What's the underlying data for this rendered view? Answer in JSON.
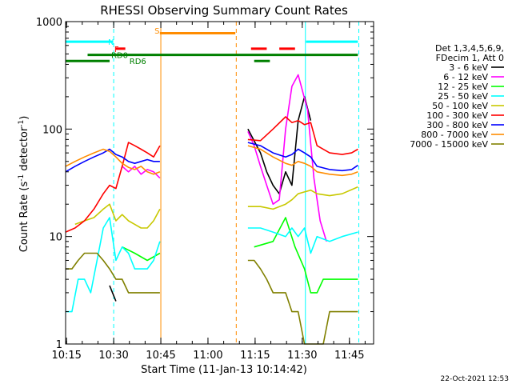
{
  "chart_data": {
    "type": "line",
    "title": "RHESSI Observing Summary Count Rates",
    "xlabel": "Start Time (11-Jan-13 10:14:42)",
    "ylabel_parts": [
      "Count Rate (s",
      "-1",
      " detector",
      "-1",
      ")"
    ],
    "yscale": "log",
    "ylim": [
      1,
      1000
    ],
    "xlim_min": [
      0,
      98
    ],
    "x_unit": "minutes after 10:14:42",
    "yticks": [
      {
        "v": 1,
        "label": "1"
      },
      {
        "v": 10,
        "label": "10"
      },
      {
        "v": 100,
        "label": "100"
      },
      {
        "v": 1000,
        "label": "1000"
      }
    ],
    "xticks": [
      {
        "m": 0.3,
        "label": "10:15"
      },
      {
        "m": 15.3,
        "label": "10:30"
      },
      {
        "m": 30.3,
        "label": "10:45"
      },
      {
        "m": 45.3,
        "label": "11:00"
      },
      {
        "m": 60.3,
        "label": "11:15"
      },
      {
        "m": 75.3,
        "label": "11:30"
      },
      {
        "m": 90.3,
        "label": "11:45"
      }
    ],
    "legend": {
      "header": [
        "Det 1,3,4,5,6,9,",
        "FDecim 1, Att 0"
      ],
      "placement": "right"
    },
    "series": [
      {
        "name": "3 - 6 keV",
        "color": "#000000",
        "points": [
          [
            0,
            null
          ],
          [
            14,
            3.5
          ],
          [
            16,
            2.5
          ],
          [
            18,
            null
          ],
          [
            58,
            100
          ],
          [
            62,
            60
          ],
          [
            64,
            40
          ],
          [
            66,
            30
          ],
          [
            68,
            25
          ],
          [
            70,
            40
          ],
          [
            72,
            30
          ],
          [
            74,
            120
          ],
          [
            76,
            200
          ],
          [
            78,
            120
          ],
          [
            80,
            null
          ]
        ]
      },
      {
        "name": "6 - 12 keV",
        "color": "#ff00ff",
        "points": [
          [
            0,
            null
          ],
          [
            18,
            45
          ],
          [
            20,
            40
          ],
          [
            22,
            45
          ],
          [
            24,
            38
          ],
          [
            26,
            42
          ],
          [
            28,
            40
          ],
          [
            30,
            35
          ],
          [
            31,
            null
          ],
          [
            58,
            95
          ],
          [
            60,
            70
          ],
          [
            62,
            45
          ],
          [
            64,
            30
          ],
          [
            66,
            20
          ],
          [
            68,
            22
          ],
          [
            70,
            100
          ],
          [
            72,
            250
          ],
          [
            74,
            320
          ],
          [
            75,
            250
          ],
          [
            77,
            150
          ],
          [
            79,
            35
          ],
          [
            81,
            14
          ],
          [
            83,
            9
          ],
          [
            84,
            null
          ]
        ]
      },
      {
        "name": "12 - 25 keV",
        "color": "#00ff00",
        "points": [
          [
            0,
            null
          ],
          [
            18,
            8
          ],
          [
            22,
            7
          ],
          [
            26,
            6
          ],
          [
            30,
            7
          ],
          [
            31,
            null
          ],
          [
            60,
            8
          ],
          [
            66,
            9
          ],
          [
            70,
            15
          ],
          [
            73,
            8
          ],
          [
            76,
            5
          ],
          [
            78,
            3
          ],
          [
            80,
            3
          ],
          [
            82,
            4
          ],
          [
            86,
            4
          ],
          [
            90,
            4
          ],
          [
            93,
            4
          ]
        ]
      },
      {
        "name": "25 - 50 keV",
        "color": "#00ffff",
        "points": [
          [
            0,
            2
          ],
          [
            2,
            2
          ],
          [
            4,
            4
          ],
          [
            6,
            4
          ],
          [
            8,
            3
          ],
          [
            10,
            6
          ],
          [
            12,
            12
          ],
          [
            14,
            15
          ],
          [
            16,
            6
          ],
          [
            18,
            8
          ],
          [
            20,
            7
          ],
          [
            22,
            5
          ],
          [
            24,
            5
          ],
          [
            26,
            5
          ],
          [
            28,
            6
          ],
          [
            30,
            9
          ],
          [
            31,
            null
          ],
          [
            58,
            12
          ],
          [
            62,
            12
          ],
          [
            66,
            11
          ],
          [
            70,
            10
          ],
          [
            72,
            12
          ],
          [
            74,
            10
          ],
          [
            76,
            12
          ],
          [
            78,
            7
          ],
          [
            80,
            10
          ],
          [
            84,
            9
          ],
          [
            88,
            10
          ],
          [
            93,
            11
          ]
        ]
      },
      {
        "name": "50 - 100 keV",
        "color": "#c8c800",
        "points": [
          [
            0,
            null
          ],
          [
            3,
            13
          ],
          [
            6,
            14
          ],
          [
            9,
            15
          ],
          [
            12,
            18
          ],
          [
            14,
            20
          ],
          [
            16,
            14
          ],
          [
            18,
            16
          ],
          [
            20,
            14
          ],
          [
            22,
            13
          ],
          [
            24,
            12
          ],
          [
            26,
            12
          ],
          [
            28,
            14
          ],
          [
            30,
            18
          ],
          [
            31,
            null
          ],
          [
            58,
            19
          ],
          [
            62,
            19
          ],
          [
            66,
            18
          ],
          [
            70,
            20
          ],
          [
            72,
            22
          ],
          [
            74,
            25
          ],
          [
            76,
            26
          ],
          [
            78,
            27
          ],
          [
            80,
            25
          ],
          [
            84,
            24
          ],
          [
            88,
            25
          ],
          [
            93,
            29
          ]
        ]
      },
      {
        "name": "100 - 300 keV",
        "color": "#ff0000",
        "points": [
          [
            0,
            11
          ],
          [
            3,
            12
          ],
          [
            6,
            14
          ],
          [
            9,
            18
          ],
          [
            12,
            25
          ],
          [
            14,
            30
          ],
          [
            16,
            28
          ],
          [
            18,
            45
          ],
          [
            20,
            75
          ],
          [
            22,
            70
          ],
          [
            24,
            65
          ],
          [
            26,
            60
          ],
          [
            28,
            55
          ],
          [
            30,
            70
          ],
          [
            31,
            null
          ],
          [
            58,
            80
          ],
          [
            62,
            78
          ],
          [
            66,
            100
          ],
          [
            70,
            130
          ],
          [
            72,
            115
          ],
          [
            74,
            120
          ],
          [
            76,
            110
          ],
          [
            78,
            115
          ],
          [
            80,
            70
          ],
          [
            84,
            60
          ],
          [
            88,
            58
          ],
          [
            91,
            60
          ],
          [
            93,
            65
          ]
        ]
      },
      {
        "name": "300 - 800 keV",
        "color": "#0000ff",
        "points": [
          [
            0,
            40
          ],
          [
            3,
            45
          ],
          [
            6,
            50
          ],
          [
            9,
            55
          ],
          [
            12,
            60
          ],
          [
            14,
            65
          ],
          [
            16,
            58
          ],
          [
            18,
            55
          ],
          [
            20,
            50
          ],
          [
            22,
            48
          ],
          [
            24,
            50
          ],
          [
            26,
            52
          ],
          [
            28,
            50
          ],
          [
            30,
            50
          ],
          [
            31,
            null
          ],
          [
            58,
            75
          ],
          [
            62,
            70
          ],
          [
            66,
            60
          ],
          [
            70,
            55
          ],
          [
            72,
            58
          ],
          [
            74,
            65
          ],
          [
            76,
            60
          ],
          [
            78,
            55
          ],
          [
            80,
            45
          ],
          [
            84,
            42
          ],
          [
            88,
            41
          ],
          [
            91,
            42
          ],
          [
            93,
            46
          ]
        ]
      },
      {
        "name": "800 - 7000 keV",
        "color": "#ff8c00",
        "points": [
          [
            0,
            45
          ],
          [
            3,
            50
          ],
          [
            6,
            55
          ],
          [
            9,
            60
          ],
          [
            12,
            65
          ],
          [
            14,
            62
          ],
          [
            16,
            55
          ],
          [
            18,
            48
          ],
          [
            20,
            44
          ],
          [
            22,
            42
          ],
          [
            24,
            45
          ],
          [
            26,
            40
          ],
          [
            28,
            38
          ],
          [
            30,
            40
          ],
          [
            31,
            null
          ],
          [
            58,
            70
          ],
          [
            62,
            65
          ],
          [
            66,
            55
          ],
          [
            70,
            48
          ],
          [
            72,
            46
          ],
          [
            74,
            50
          ],
          [
            76,
            48
          ],
          [
            78,
            45
          ],
          [
            80,
            40
          ],
          [
            84,
            38
          ],
          [
            88,
            37
          ],
          [
            91,
            38
          ],
          [
            93,
            40
          ]
        ]
      },
      {
        "name": "7000 - 15000 keV",
        "color": "#808000",
        "points": [
          [
            0,
            5
          ],
          [
            2,
            5
          ],
          [
            4,
            6
          ],
          [
            6,
            7
          ],
          [
            8,
            7
          ],
          [
            10,
            7
          ],
          [
            12,
            6
          ],
          [
            14,
            5
          ],
          [
            16,
            4
          ],
          [
            18,
            4
          ],
          [
            20,
            3
          ],
          [
            22,
            3
          ],
          [
            24,
            3
          ],
          [
            26,
            3
          ],
          [
            28,
            3
          ],
          [
            30,
            3
          ],
          [
            31,
            null
          ],
          [
            58,
            6
          ],
          [
            60,
            6
          ],
          [
            62,
            5
          ],
          [
            64,
            4
          ],
          [
            66,
            3
          ],
          [
            68,
            3
          ],
          [
            70,
            3
          ],
          [
            72,
            2
          ],
          [
            74,
            2
          ],
          [
            76,
            1
          ],
          [
            78,
            1
          ],
          [
            80,
            1
          ],
          [
            82,
            1
          ],
          [
            84,
            2
          ],
          [
            86,
            2
          ],
          [
            88,
            2
          ],
          [
            90,
            2
          ],
          [
            93,
            2
          ]
        ]
      }
    ],
    "markers": [
      {
        "label": "N",
        "color": "#00ffff",
        "y": 650,
        "segments": [
          [
            0,
            15
          ],
          [
            76.5,
            93
          ]
        ],
        "label_at": 13.5,
        "label_y": 650
      },
      {
        "label": "F",
        "color": "#ff0000",
        "y": 560,
        "segments": [
          [
            16,
            19
          ],
          [
            59,
            64
          ],
          [
            68,
            73
          ]
        ],
        "label_at": 15.5,
        "label_y": 560
      },
      {
        "label": "RD0",
        "color": "#008000",
        "y": 490,
        "segments": [
          [
            7,
            93
          ]
        ],
        "label_at": 14.5,
        "label_y": 490
      },
      {
        "label": "RD6",
        "color": "#008000",
        "y": 430,
        "segments": [
          [
            0,
            14
          ],
          [
            60,
            65
          ]
        ],
        "label_at": 20.3,
        "label_y": 430
      },
      {
        "label": "S",
        "color": "#ff8c00",
        "y": 780,
        "segments": [
          [
            30,
            54
          ]
        ],
        "label_at": 28.3,
        "label_y": 830
      }
    ],
    "vlines": [
      {
        "m": 15.3,
        "color": "#00ffff",
        "dashed": true
      },
      {
        "m": 30.3,
        "color": "#ff8c00",
        "dashed": false
      },
      {
        "m": 54.3,
        "color": "#ff8c00",
        "dashed": true
      },
      {
        "m": 76.3,
        "color": "#00ffff",
        "dashed": false
      },
      {
        "m": 93.3,
        "color": "#00ffff",
        "dashed": true
      }
    ]
  },
  "timestamp": "22-Oct-2021 12:53"
}
